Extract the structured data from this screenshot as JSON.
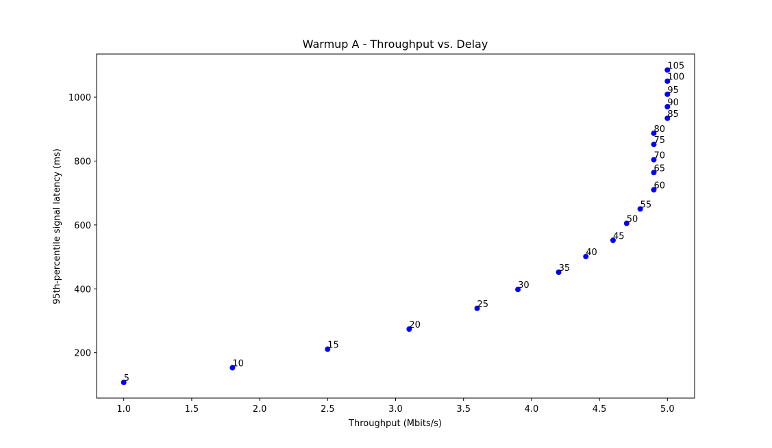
{
  "chart_data": {
    "type": "scatter",
    "title": "Warmup A - Throughput vs. Delay",
    "xlabel": "Throughput (Mbits/s)",
    "ylabel": "95th-percentile signal latency (ms)",
    "xlim": [
      0.8,
      5.2
    ],
    "ylim": [
      58,
      1135
    ],
    "xticks": [
      "1.0",
      "1.5",
      "2.0",
      "2.5",
      "3.0",
      "3.5",
      "4.0",
      "4.5",
      "5.0"
    ],
    "yticks": [
      "200",
      "400",
      "600",
      "800",
      "1000"
    ],
    "marker_color": "#0000ff",
    "grid": false,
    "points": [
      {
        "label": "5",
        "x": 1.0,
        "y": 107
      },
      {
        "label": "10",
        "x": 1.8,
        "y": 153
      },
      {
        "label": "15",
        "x": 2.5,
        "y": 211
      },
      {
        "label": "20",
        "x": 3.1,
        "y": 274
      },
      {
        "label": "25",
        "x": 3.6,
        "y": 339
      },
      {
        "label": "30",
        "x": 3.9,
        "y": 398
      },
      {
        "label": "35",
        "x": 4.2,
        "y": 452
      },
      {
        "label": "40",
        "x": 4.4,
        "y": 501
      },
      {
        "label": "45",
        "x": 4.6,
        "y": 552
      },
      {
        "label": "50",
        "x": 4.7,
        "y": 605
      },
      {
        "label": "55",
        "x": 4.8,
        "y": 650
      },
      {
        "label": "60",
        "x": 4.9,
        "y": 710
      },
      {
        "label": "65",
        "x": 4.9,
        "y": 764
      },
      {
        "label": "70",
        "x": 4.9,
        "y": 804
      },
      {
        "label": "75",
        "x": 4.9,
        "y": 852
      },
      {
        "label": "80",
        "x": 4.9,
        "y": 887
      },
      {
        "label": "85",
        "x": 5.0,
        "y": 934
      },
      {
        "label": "90",
        "x": 5.0,
        "y": 970
      },
      {
        "label": "95",
        "x": 5.0,
        "y": 1009
      },
      {
        "label": "100",
        "x": 5.0,
        "y": 1050
      },
      {
        "label": "105",
        "x": 5.0,
        "y": 1085
      }
    ]
  }
}
